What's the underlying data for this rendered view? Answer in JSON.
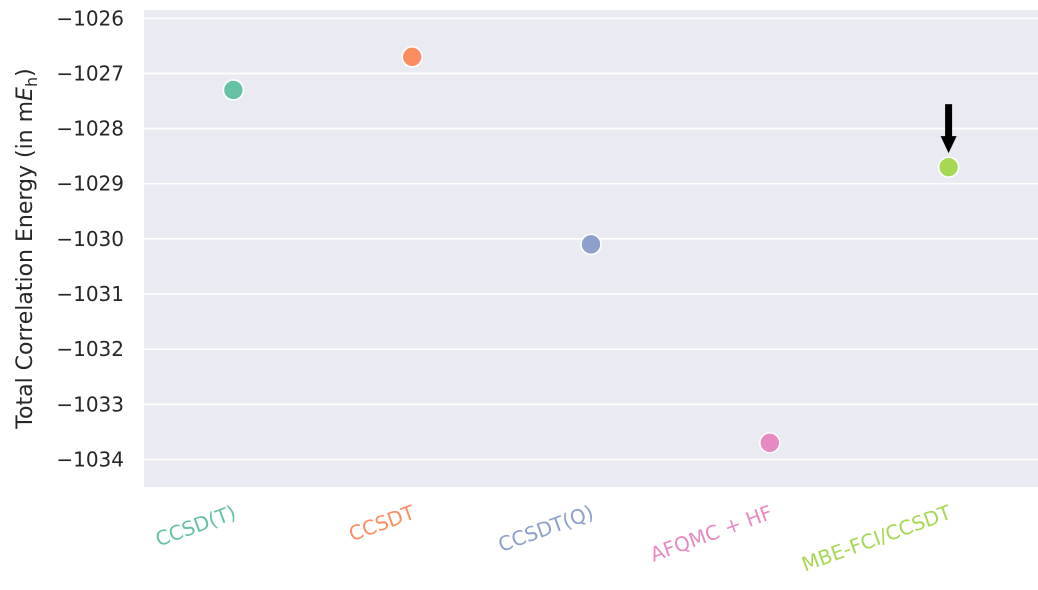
{
  "chart_data": {
    "type": "scatter",
    "title": "",
    "xlabel": "",
    "ylabel": {
      "prefix": "Total Correlation Energy (in m",
      "symbol": "E",
      "subscript": "h",
      "suffix": ")"
    },
    "ylim": [
      -1034.5,
      -1025.85
    ],
    "yticks": [
      -1026,
      -1027,
      -1028,
      -1029,
      -1030,
      -1031,
      -1032,
      -1033,
      -1034
    ],
    "ytick_labels": [
      "−1026",
      "−1027",
      "−1028",
      "−1029",
      "−1030",
      "−1031",
      "−1032",
      "−1033",
      "−1034"
    ],
    "grid": true,
    "background": "#eaeaf2",
    "categories": [
      "CCSD(T)",
      "CCSDT",
      "CCSDT(Q)",
      "AFQMC + HF",
      "MBE-FCI/CCSDT"
    ],
    "values": [
      -1027.3,
      -1026.7,
      -1030.1,
      -1033.7,
      -1028.7
    ],
    "colors": [
      "#66c2a5",
      "#fc8d62",
      "#8da0cb",
      "#e78ac3",
      "#a6d854"
    ],
    "annotation": {
      "type": "arrow",
      "category": "MBE-FCI/CCSDT",
      "color": "#000000"
    }
  }
}
